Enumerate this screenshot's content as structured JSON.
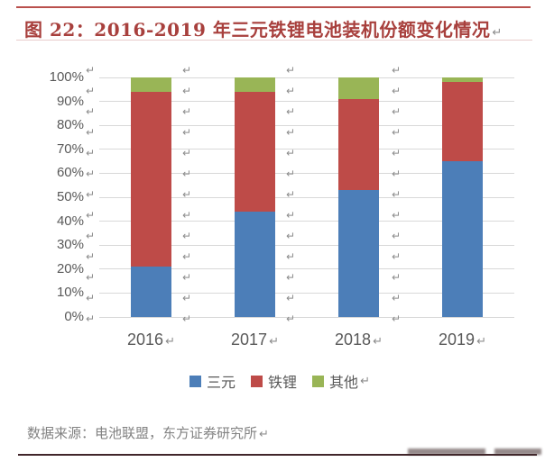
{
  "header": {
    "title": "图 22：2016-2019 年三元铁锂电池装机份额变化情况"
  },
  "chart_data": {
    "type": "bar",
    "stacked": true,
    "title": "2016-2019 年三元铁锂电池装机份额变化情况",
    "categories": [
      "2016",
      "2017",
      "2018",
      "2019"
    ],
    "series": [
      {
        "name": "三元",
        "color": "#4c7eb8",
        "values": [
          21,
          44,
          53,
          65
        ]
      },
      {
        "name": "铁锂",
        "color": "#be4b48",
        "values": [
          73,
          50,
          38,
          33
        ]
      },
      {
        "name": "其他",
        "color": "#99b556",
        "values": [
          6,
          6,
          9,
          2
        ]
      }
    ],
    "unit": "%",
    "ylim": [
      0,
      100
    ],
    "y_tick_labels": [
      "0%",
      "10%",
      "20%",
      "30%",
      "40%",
      "50%",
      "60%",
      "70%",
      "80%",
      "90%",
      "100%"
    ],
    "grid": true,
    "legend_position": "bottom",
    "xlabel": "",
    "ylabel": ""
  },
  "footer": {
    "source": "数据来源：电池联盟，东方证券研究所"
  },
  "ui": {
    "return_mark": "↵"
  },
  "colors": {
    "title_red": "#a8403d",
    "top_rule_red": "#b9504c",
    "under_rule_pink": "#e9cccb",
    "bottom_rule_dark": "#41262b",
    "series_blue": "#4c7eb8",
    "series_red": "#be4b48",
    "series_green": "#99b556",
    "gridline_gray": "#d8d8d8",
    "axis_text_gray": "#595959",
    "return_mark_gray": "#8c8c8c",
    "source_text_gray": "#828282"
  }
}
